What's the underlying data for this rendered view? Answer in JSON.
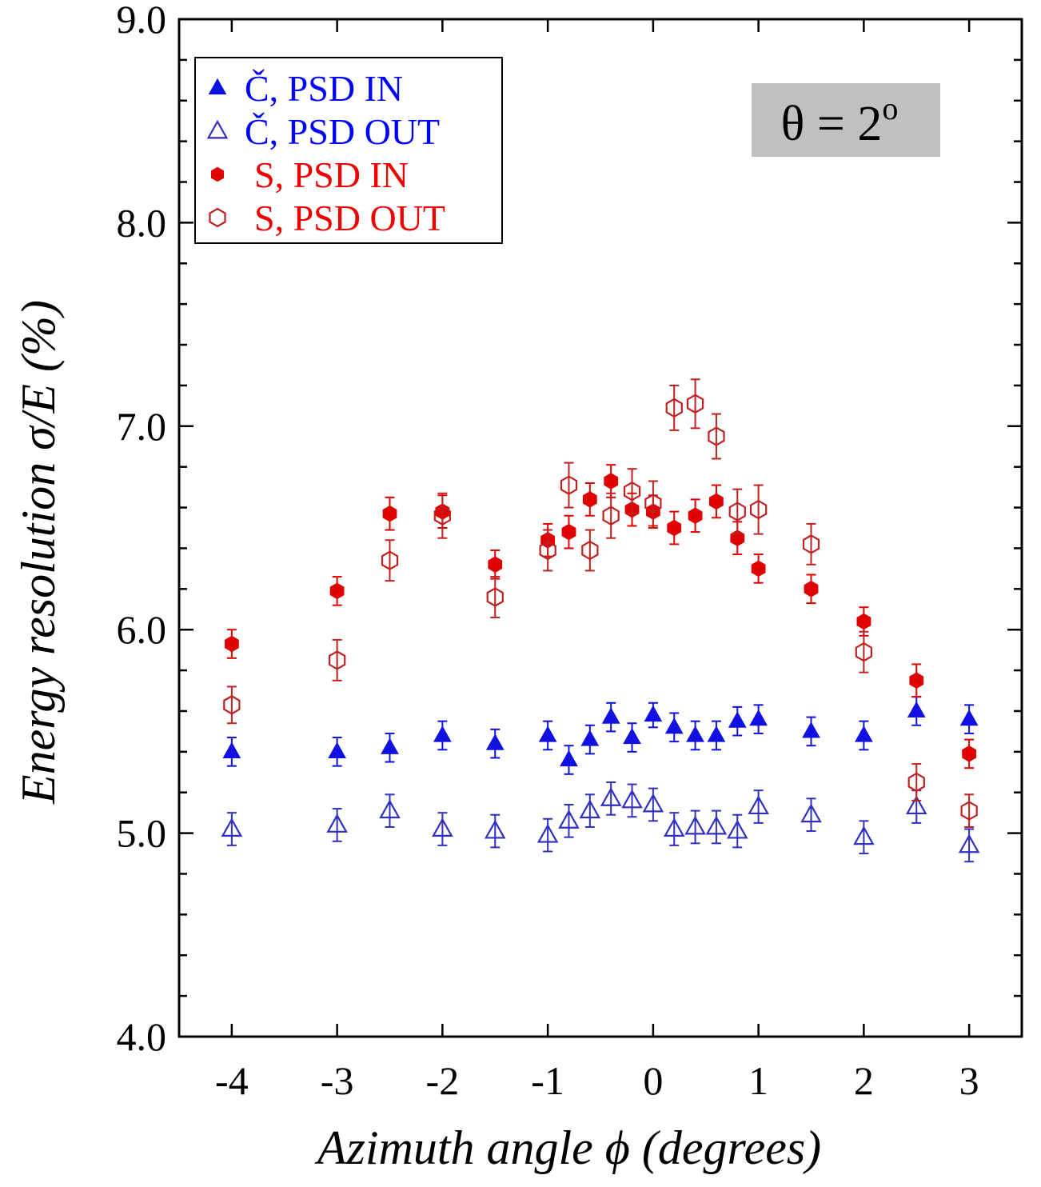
{
  "chart_data": {
    "type": "scatter",
    "title": "",
    "xlabel": "Azimuth angle ϕ (degrees)",
    "ylabel": "Energy resolution σ/E (%)",
    "xlim": [
      -4.5,
      3.5
    ],
    "ylim": [
      4.0,
      9.0
    ],
    "x_ticks": [
      -4,
      -3,
      -2,
      -1,
      0,
      1,
      2,
      3
    ],
    "x_tick_labels": [
      "-4",
      "-3",
      "-2",
      "-1",
      "0",
      "1",
      "2",
      "3"
    ],
    "y_ticks": [
      4.0,
      5.0,
      6.0,
      7.0,
      8.0,
      9.0
    ],
    "y_tick_labels": [
      "4.0",
      "5.0",
      "6.0",
      "7.0",
      "8.0",
      "9.0"
    ],
    "y_minor_step": 0.2,
    "grid": false,
    "legend_position": "top-left",
    "annotation": {
      "text": "θ = 2",
      "superscript": "o",
      "background": "#c0c0c0"
    },
    "series": [
      {
        "name": "Č, PSD IN",
        "marker": "triangle-filled",
        "color": "#1010e0",
        "x": [
          -4,
          -3,
          -2.5,
          -2,
          -1.5,
          -1,
          -0.8,
          -0.6,
          -0.4,
          -0.2,
          0,
          0.2,
          0.4,
          0.6,
          0.8,
          1,
          1.5,
          2,
          2.5,
          3
        ],
        "y": [
          5.4,
          5.4,
          5.42,
          5.48,
          5.44,
          5.48,
          5.36,
          5.46,
          5.57,
          5.47,
          5.58,
          5.52,
          5.48,
          5.48,
          5.55,
          5.56,
          5.5,
          5.48,
          5.6,
          5.56
        ],
        "err": [
          0.07,
          0.07,
          0.07,
          0.07,
          0.07,
          0.07,
          0.07,
          0.07,
          0.07,
          0.07,
          0.06,
          0.07,
          0.07,
          0.07,
          0.07,
          0.07,
          0.07,
          0.07,
          0.07,
          0.07
        ]
      },
      {
        "name": "Č, PSD OUT",
        "marker": "triangle-open",
        "color": "#3030c0",
        "x": [
          -4,
          -3,
          -2.5,
          -2,
          -1.5,
          -1,
          -0.8,
          -0.6,
          -0.4,
          -0.2,
          0,
          0.2,
          0.4,
          0.6,
          0.8,
          1,
          1.5,
          2,
          2.5,
          3
        ],
        "y": [
          5.02,
          5.04,
          5.11,
          5.02,
          5.01,
          4.99,
          5.06,
          5.11,
          5.17,
          5.16,
          5.14,
          5.02,
          5.03,
          5.03,
          5.01,
          5.13,
          5.09,
          4.98,
          5.13,
          4.94
        ],
        "err": [
          0.08,
          0.08,
          0.08,
          0.08,
          0.08,
          0.08,
          0.08,
          0.08,
          0.08,
          0.08,
          0.08,
          0.08,
          0.08,
          0.08,
          0.08,
          0.08,
          0.08,
          0.08,
          0.08,
          0.08
        ]
      },
      {
        "name": "S, PSD IN",
        "marker": "hexagon-filled",
        "color": "#e00000",
        "x": [
          -4,
          -3,
          -2.5,
          -2,
          -1.5,
          -1,
          -0.8,
          -0.6,
          -0.4,
          -0.2,
          0,
          0.2,
          0.4,
          0.6,
          0.8,
          1,
          1.5,
          2,
          2.5,
          3
        ],
        "y": [
          5.93,
          6.19,
          6.57,
          6.58,
          6.32,
          6.44,
          6.48,
          6.64,
          6.73,
          6.59,
          6.58,
          6.5,
          6.56,
          6.63,
          6.45,
          6.3,
          6.2,
          6.04,
          5.75,
          5.39
        ],
        "err": [
          0.07,
          0.07,
          0.08,
          0.08,
          0.07,
          0.08,
          0.08,
          0.08,
          0.08,
          0.08,
          0.08,
          0.08,
          0.08,
          0.08,
          0.08,
          0.07,
          0.07,
          0.07,
          0.08,
          0.07
        ]
      },
      {
        "name": "S, PSD OUT",
        "marker": "hexagon-open",
        "color": "#c02020",
        "x": [
          -4,
          -3,
          -2.5,
          -2,
          -1.5,
          -1,
          -0.8,
          -0.6,
          -0.4,
          -0.2,
          0,
          0.2,
          0.4,
          0.6,
          0.8,
          1,
          1.5,
          2,
          2.5,
          3
        ],
        "y": [
          5.63,
          5.85,
          6.34,
          6.56,
          6.16,
          6.39,
          6.71,
          6.39,
          6.56,
          6.68,
          6.62,
          7.09,
          7.11,
          6.95,
          6.58,
          6.59,
          6.42,
          5.89,
          5.25,
          5.11
        ],
        "err": [
          0.09,
          0.1,
          0.1,
          0.11,
          0.1,
          0.1,
          0.11,
          0.1,
          0.11,
          0.11,
          0.11,
          0.11,
          0.12,
          0.11,
          0.11,
          0.12,
          0.1,
          0.1,
          0.09,
          0.08
        ]
      }
    ]
  }
}
